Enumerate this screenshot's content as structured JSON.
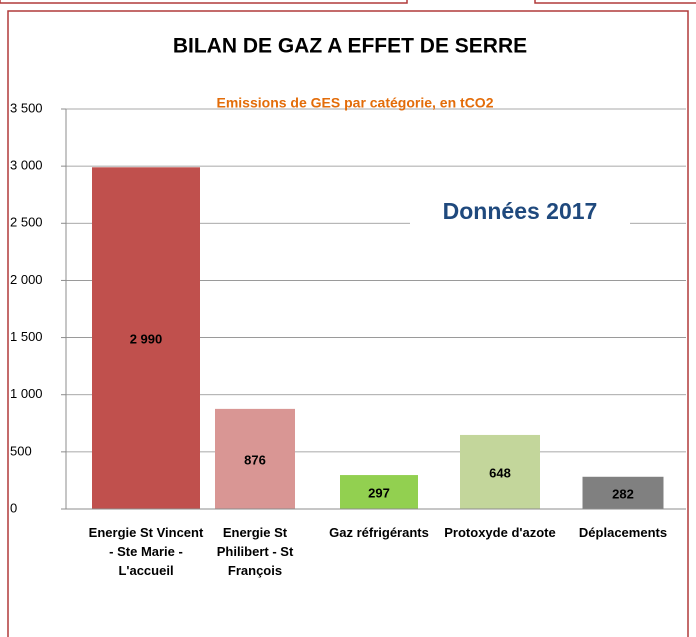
{
  "chart_data": {
    "type": "bar",
    "title": "BILAN DE GAZ A EFFET DE SERRE",
    "subtitle": "Emissions de GES par catégorie, en tCO2",
    "annotation": "Données 2017",
    "categories": [
      "Energie St Vincent - Ste Marie - L'accueil",
      "Energie St Philibert - St François",
      "Gaz réfrigérants",
      "Protoxyde d'azote",
      "Déplacements"
    ],
    "values": [
      2990,
      876,
      297,
      648,
      282
    ],
    "value_labels": [
      "2 990",
      "876",
      "297",
      "648",
      "282"
    ],
    "colors": [
      "#c0504d",
      "#d99694",
      "#92d050",
      "#c3d69b",
      "#808080"
    ],
    "ylim": [
      0,
      3500
    ],
    "yticks": [
      0,
      500,
      {
        "value": 1000,
        "label": "1 000"
      },
      {
        "value": 1500,
        "label": "1 500"
      },
      {
        "value": 2000,
        "label": "2 000"
      },
      {
        "value": 2500,
        "label": "2 500"
      },
      {
        "value": 3000,
        "label": "3 000"
      },
      {
        "value": 3500,
        "label": "3 500"
      }
    ],
    "grid": true
  }
}
